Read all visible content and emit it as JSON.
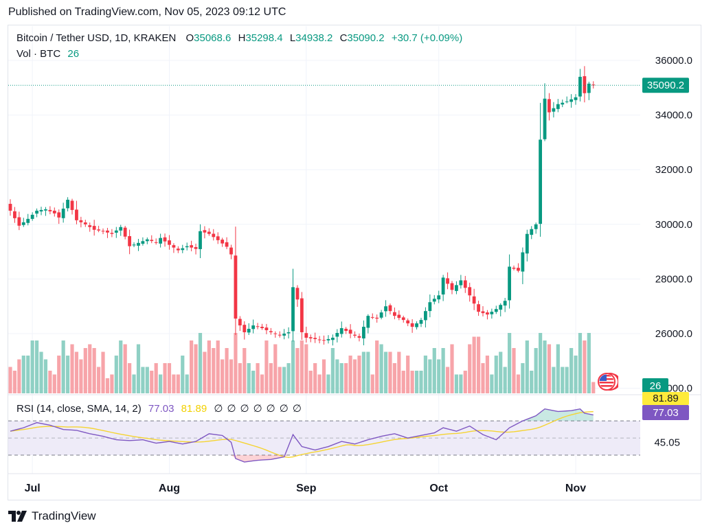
{
  "header": {
    "published": "Published on TradingView.com, Nov 05, 2023 09:12 UTC"
  },
  "legend": {
    "symbol": "Bitcoin / Tether USD, 1D, KRAKEN",
    "o_label": "O",
    "o_value": "35068.6",
    "h_label": "H",
    "h_value": "35298.4",
    "l_label": "L",
    "l_value": "34938.2",
    "c_label": "C",
    "c_value": "35090.2",
    "change": "+30.7 (+0.09%)",
    "vol_label": "Vol · BTC",
    "vol_value": "26",
    "rsi_label": "RSI (14, close, SMA, 14, 2)",
    "rsi_value": "77.03",
    "rsi_sma_value": "81.89",
    "na_markers": [
      "∅",
      "∅",
      "∅",
      "∅",
      "∅",
      "∅",
      "∅"
    ]
  },
  "brand": {
    "name": "TradingView"
  },
  "chart_data": {
    "type": "candlestick",
    "title": "Bitcoin / Tether USD, 1D, KRAKEN",
    "price_axis": {
      "ticks": [
        "36000.0",
        "34000.0",
        "32000.0",
        "30000.0",
        "28000.0",
        "26000.0",
        "24000.0"
      ],
      "range": [
        23800,
        36500
      ]
    },
    "last_price_label": "35090.2",
    "volume_label": "26",
    "rsi_axis": {
      "ticks": [
        "45.05"
      ],
      "upper_band": 70,
      "lower_band": 30,
      "range": [
        18,
        95
      ]
    },
    "rsi_labels": {
      "sma": "81.89",
      "rsi": "77.03"
    },
    "time_axis": [
      {
        "label": "Jul",
        "index": 5
      },
      {
        "label": "Aug",
        "index": 36
      },
      {
        "label": "Sep",
        "index": 67
      },
      {
        "label": "Oct",
        "index": 97
      },
      {
        "label": "Nov",
        "index": 128
      }
    ],
    "anchors": [
      [
        0,
        30500
      ],
      [
        2,
        29950
      ],
      [
        4,
        30200
      ],
      [
        6,
        30500
      ],
      [
        8,
        30550
      ],
      [
        10,
        30400
      ],
      [
        11,
        30250
      ],
      [
        13,
        30900
      ],
      [
        15,
        30150
      ],
      [
        17,
        30000
      ],
      [
        19,
        29800
      ],
      [
        21,
        29750
      ],
      [
        23,
        29650
      ],
      [
        25,
        29900
      ],
      [
        27,
        29200
      ],
      [
        29,
        29320
      ],
      [
        31,
        29450
      ],
      [
        33,
        29330
      ],
      [
        34,
        29500
      ],
      [
        36,
        29250
      ],
      [
        38,
        29050
      ],
      [
        40,
        29200
      ],
      [
        42,
        29100
      ],
      [
        43,
        29750
      ],
      [
        45,
        29650
      ],
      [
        47,
        29420
      ],
      [
        49,
        29180
      ],
      [
        50,
        28900
      ],
      [
        51,
        26550
      ],
      [
        53,
        26050
      ],
      [
        55,
        26300
      ],
      [
        57,
        26200
      ],
      [
        59,
        26050
      ],
      [
        61,
        25950
      ],
      [
        63,
        26050
      ],
      [
        64,
        27700
      ],
      [
        65,
        27250
      ],
      [
        66,
        26050
      ],
      [
        67,
        25850
      ],
      [
        69,
        25800
      ],
      [
        71,
        25750
      ],
      [
        73,
        25850
      ],
      [
        75,
        26200
      ],
      [
        77,
        26000
      ],
      [
        79,
        25850
      ],
      [
        81,
        26650
      ],
      [
        83,
        26550
      ],
      [
        85,
        27000
      ],
      [
        87,
        26650
      ],
      [
        89,
        26500
      ],
      [
        91,
        26250
      ],
      [
        93,
        26500
      ],
      [
        95,
        27150
      ],
      [
        97,
        27400
      ],
      [
        98,
        28050
      ],
      [
        100,
        27600
      ],
      [
        102,
        27950
      ],
      [
        104,
        27400
      ],
      [
        106,
        26800
      ],
      [
        108,
        26700
      ],
      [
        110,
        26900
      ],
      [
        112,
        27200
      ],
      [
        113,
        28450
      ],
      [
        115,
        28300
      ],
      [
        117,
        29650
      ],
      [
        119,
        30000
      ],
      [
        120,
        33100
      ],
      [
        121,
        34600
      ],
      [
        122,
        34100
      ],
      [
        124,
        34400
      ],
      [
        126,
        34500
      ],
      [
        128,
        34650
      ],
      [
        129,
        35400
      ],
      [
        130,
        34800
      ],
      [
        131,
        35150
      ],
      [
        132,
        35090.2
      ]
    ],
    "rsi_anchors": [
      [
        0,
        58
      ],
      [
        3,
        62
      ],
      [
        6,
        68
      ],
      [
        9,
        65
      ],
      [
        12,
        60
      ],
      [
        15,
        59
      ],
      [
        18,
        55
      ],
      [
        21,
        52
      ],
      [
        24,
        48
      ],
      [
        27,
        47
      ],
      [
        30,
        48
      ],
      [
        33,
        44
      ],
      [
        36,
        46
      ],
      [
        39,
        43
      ],
      [
        42,
        46
      ],
      [
        45,
        55
      ],
      [
        48,
        53
      ],
      [
        50,
        45
      ],
      [
        51,
        26
      ],
      [
        53,
        22
      ],
      [
        56,
        24
      ],
      [
        59,
        25
      ],
      [
        62,
        28
      ],
      [
        64,
        54
      ],
      [
        66,
        40
      ],
      [
        69,
        36
      ],
      [
        72,
        40
      ],
      [
        75,
        46
      ],
      [
        78,
        43
      ],
      [
        81,
        48
      ],
      [
        84,
        52
      ],
      [
        87,
        55
      ],
      [
        90,
        50
      ],
      [
        93,
        53
      ],
      [
        96,
        56
      ],
      [
        98,
        62
      ],
      [
        101,
        58
      ],
      [
        104,
        64
      ],
      [
        107,
        54
      ],
      [
        110,
        48
      ],
      [
        113,
        62
      ],
      [
        116,
        70
      ],
      [
        119,
        76
      ],
      [
        121,
        84
      ],
      [
        124,
        81
      ],
      [
        127,
        82
      ],
      [
        129,
        84
      ],
      [
        130,
        79
      ],
      [
        132,
        77.03
      ]
    ]
  },
  "colors": {
    "up": "#089981",
    "down": "#f23645",
    "vol_up": "#8fd0c4",
    "vol_down": "#f7a4a9",
    "rsi_line": "#7e57c2",
    "rsi_sma": "#f5d431",
    "band_fill": "#eeebf8",
    "grid": "#f0f3fa",
    "price_label_bg": "#089981"
  }
}
